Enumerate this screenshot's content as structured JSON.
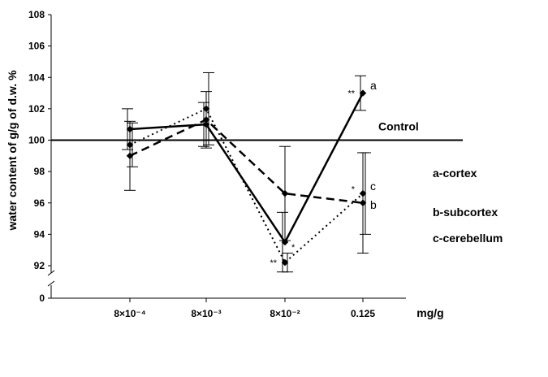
{
  "chart_data": {
    "type": "line",
    "ylabel": "water content of g/g of d.w. %",
    "xlabel": "mg/g",
    "categories": [
      "8×10⁻⁴",
      "8×10⁻³",
      "8×10⁻²",
      "0.125"
    ],
    "y_ticks": [
      92,
      94,
      96,
      98,
      100,
      102,
      104,
      106,
      108
    ],
    "y_zero_tick": "0",
    "ylim": [
      92,
      108
    ],
    "axis_break": true,
    "reference_line": {
      "value": 100,
      "label": "Control"
    },
    "series": [
      {
        "key": "a",
        "values": [
          100.7,
          101.0,
          93.5,
          103.0
        ],
        "errors": [
          1.3,
          1.4,
          1.9,
          1.1
        ],
        "style": "solid"
      },
      {
        "key": "b",
        "values": [
          99.0,
          101.3,
          96.6,
          96.0
        ],
        "errors": [
          2.2,
          1.8,
          3.0,
          3.2
        ],
        "style": "dashed"
      },
      {
        "key": "c",
        "values": [
          99.7,
          102.0,
          92.2,
          96.6
        ],
        "errors": [
          1.4,
          2.3,
          0.6,
          2.6
        ],
        "style": "dotted"
      }
    ],
    "side_legend": [
      "a-cortex",
      "b-subcortex",
      "c-cerebellum"
    ],
    "significance_marks": [
      {
        "category": 2,
        "y": 92.2,
        "text": "**",
        "side": "left"
      },
      {
        "category": 2,
        "y": 93.2,
        "text": "*",
        "side": "right"
      },
      {
        "category": 3,
        "y": 103.0,
        "text": "**",
        "side": "left"
      },
      {
        "category": 3,
        "y": 96.9,
        "text": "*",
        "side": "left"
      }
    ],
    "grid": false
  }
}
